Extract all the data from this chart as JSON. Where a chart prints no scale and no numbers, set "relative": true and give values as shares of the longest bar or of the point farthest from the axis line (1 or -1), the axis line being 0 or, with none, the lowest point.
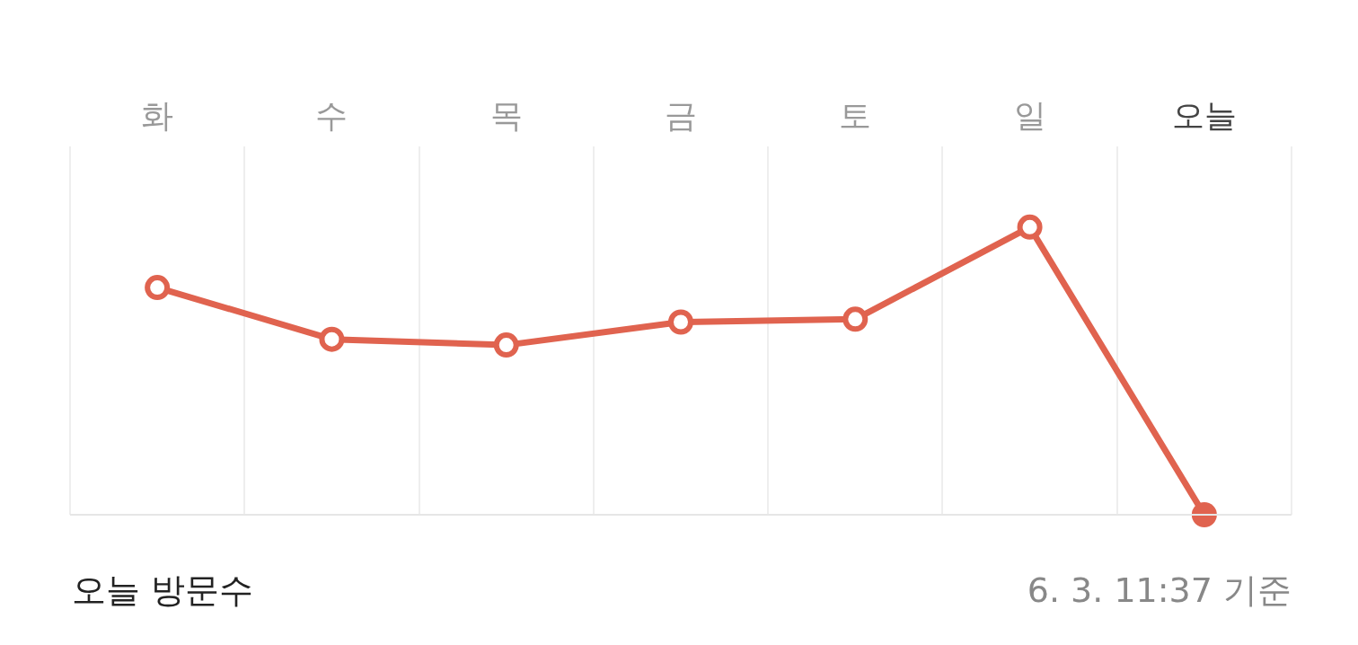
{
  "chart_data": {
    "type": "line",
    "title": "오늘 방문수",
    "annotations": [
      "6. 3. 11:37 기준"
    ],
    "relative": true,
    "categories": [
      "화",
      "수",
      "목",
      "금",
      "토",
      "일",
      "오늘"
    ],
    "series": [
      {
        "color": "#e0634f",
        "values": [
          0.79,
          0.61,
          0.59,
          0.67,
          0.68,
          1,
          0
        ]
      }
    ],
    "grid": "x",
    "legend": false,
    "marker": "circle",
    "line_style": "solid"
  }
}
